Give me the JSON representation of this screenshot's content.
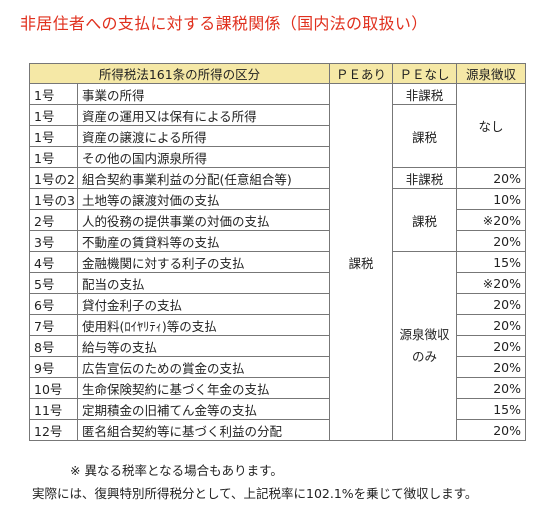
{
  "title": "非居住者への支払に対する課税関係（国内法の取扱い）",
  "headers": {
    "category": "所得税法161条の所得の区分",
    "pe_yes": "ＰＥあり",
    "pe_no": "ＰＥなし",
    "withholding": "源泉徴収"
  },
  "rows": [
    {
      "no": "1号",
      "item": "事業の所得"
    },
    {
      "no": "1号",
      "item": "資産の運用又は保有による所得"
    },
    {
      "no": "1号",
      "item": "資産の譲渡による所得"
    },
    {
      "no": "1号",
      "item": "その他の国内源泉所得"
    },
    {
      "no": "1号の2",
      "item": "組合契約事業利益の分配(任意組合等)",
      "rate": "20%"
    },
    {
      "no": "1号の3",
      "item": "土地等の譲渡対価の支払",
      "rate": "10%"
    },
    {
      "no": "2号",
      "item": "人的役務の提供事業の対価の支払",
      "rate": "※20%"
    },
    {
      "no": "3号",
      "item": "不動産の賃貸料等の支払",
      "rate": "20%"
    },
    {
      "no": "4号",
      "item": "金融機関に対する利子の支払",
      "rate": "15%"
    },
    {
      "no": "5号",
      "item": "配当の支払",
      "rate": "※20%"
    },
    {
      "no": "6号",
      "item": "貸付金利子の支払",
      "rate": "20%"
    },
    {
      "no": "7号",
      "item": "使用料(ﾛｲﾔﾘﾃｨ)等の支払",
      "rate": "20%"
    },
    {
      "no": "8号",
      "item": "給与等の支払",
      "rate": "20%"
    },
    {
      "no": "9号",
      "item": "広告宣伝のための賞金の支払",
      "rate": "20%"
    },
    {
      "no": "10号",
      "item": "生命保険契約に基づく年金の支払",
      "rate": "20%"
    },
    {
      "no": "11号",
      "item": "定期積金の旧補てん金等の支払",
      "rate": "15%"
    },
    {
      "no": "12号",
      "item": "匿名組合契約等に基づく利益の分配",
      "rate": "20%"
    }
  ],
  "merged": {
    "pe_yes_all": "課税",
    "pe_no_r1": "非課税",
    "pe_no_r2_4": "課税",
    "pe_no_r5": "非課税",
    "pe_no_r6_8": "課税",
    "pe_no_r9_17_line1": "源泉徴収",
    "pe_no_r9_17_line2": "のみ",
    "withholding_r1_4": "なし"
  },
  "notes": {
    "note1": "※ 異なる税率となる場合もあります。",
    "note2": "実際には、復興特別所得税分として、上記税率に102.1%を乗じて徴収します。"
  }
}
